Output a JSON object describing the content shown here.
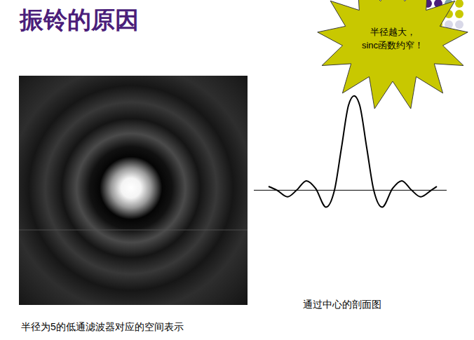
{
  "header": {
    "title": "振铃的原因"
  },
  "callout": {
    "lines": [
      "半径越大，",
      "sinc函数约窄！"
    ]
  },
  "image": {
    "caption": "半径为5的低通滤波器对应的空间表示"
  },
  "chart_data": {
    "type": "line",
    "caption": "通过中心的剖面图",
    "x": [
      -122,
      -110,
      -95,
      -82,
      -68,
      -55,
      -40,
      -28,
      -18,
      -8,
      0,
      8,
      18,
      28,
      40,
      55,
      68,
      82,
      95,
      110,
      118
    ],
    "values": [
      0.04,
      0,
      -0.07,
      0,
      0.1,
      0.02,
      -0.18,
      0,
      0.45,
      0.9,
      1,
      0.9,
      0.45,
      0,
      -0.18,
      0.02,
      0.1,
      0,
      -0.07,
      0,
      0.04
    ],
    "xlim": [
      -143,
      132
    ],
    "ylim": [
      -0.25,
      1.05
    ],
    "tick_labels": false,
    "color": "#000000"
  }
}
